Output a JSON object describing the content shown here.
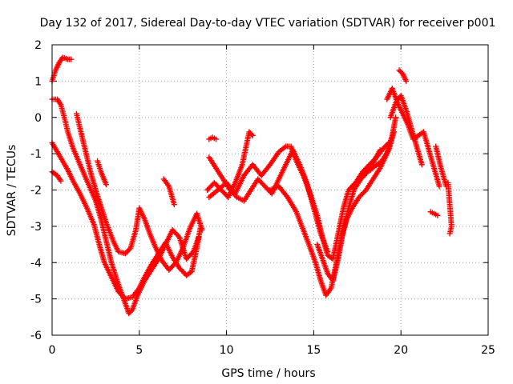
{
  "chart_data": {
    "type": "scatter",
    "title": "Day 132 of 2017, Sidereal Day-to-day VTEC variation (SDTVAR) for receiver p001",
    "xlabel": "GPS time / hours",
    "ylabel": "SDTVAR / TECUs",
    "xlim": [
      0,
      25
    ],
    "ylim": [
      -6,
      2
    ],
    "xticks": [
      0,
      5,
      10,
      15,
      20,
      25
    ],
    "xtick_labels": [
      "0",
      "5",
      "10",
      "15",
      "20",
      "25"
    ],
    "yticks": [
      2,
      1,
      0,
      -1,
      -2,
      -3,
      -4,
      -5,
      -6
    ],
    "ytick_labels": [
      "2",
      "1",
      "0",
      "-1",
      "-2",
      "-3",
      "-4",
      "-5",
      "-6"
    ],
    "grid": true,
    "marker": "+",
    "color": "#ff0000",
    "series": [
      {
        "name": "track-1",
        "points": [
          [
            0.0,
            1.0
          ],
          [
            0.2,
            1.3
          ],
          [
            0.4,
            1.5
          ],
          [
            0.6,
            1.65
          ],
          [
            0.9,
            1.6
          ],
          [
            1.1,
            1.6
          ]
        ]
      },
      {
        "name": "track-2",
        "points": [
          [
            0.0,
            0.5
          ],
          [
            0.3,
            0.5
          ],
          [
            0.5,
            0.35
          ],
          [
            0.7,
            0.0
          ],
          [
            0.9,
            -0.4
          ],
          [
            1.2,
            -0.85
          ],
          [
            1.6,
            -1.3
          ],
          [
            2.0,
            -1.75
          ],
          [
            2.5,
            -2.3
          ],
          [
            2.8,
            -2.8
          ],
          [
            3.1,
            -3.4
          ],
          [
            3.4,
            -4.0
          ],
          [
            3.8,
            -4.6
          ],
          [
            4.1,
            -5.0
          ],
          [
            4.4,
            -5.4
          ],
          [
            4.6,
            -5.3
          ],
          [
            4.9,
            -4.9
          ],
          [
            5.3,
            -4.5
          ],
          [
            5.7,
            -4.2
          ],
          [
            6.1,
            -3.9
          ],
          [
            6.5,
            -3.5
          ],
          [
            6.9,
            -3.1
          ],
          [
            7.3,
            -3.3
          ],
          [
            7.7,
            -3.9
          ],
          [
            8.1,
            -3.7
          ],
          [
            8.4,
            -3.3
          ]
        ]
      },
      {
        "name": "track-3",
        "points": [
          [
            0.0,
            -0.7
          ],
          [
            0.3,
            -0.95
          ],
          [
            0.6,
            -1.2
          ],
          [
            0.9,
            -1.45
          ],
          [
            1.2,
            -1.75
          ],
          [
            1.6,
            -2.1
          ],
          [
            2.0,
            -2.5
          ],
          [
            2.4,
            -2.95
          ],
          [
            2.7,
            -3.5
          ],
          [
            3.0,
            -4.0
          ],
          [
            3.4,
            -4.4
          ],
          [
            3.8,
            -4.8
          ],
          [
            4.2,
            -5.0
          ],
          [
            4.6,
            -4.95
          ],
          [
            5.0,
            -4.7
          ],
          [
            5.3,
            -4.4
          ],
          [
            5.7,
            -4.05
          ],
          [
            6.1,
            -3.75
          ],
          [
            6.5,
            -3.45
          ],
          [
            6.9,
            -3.85
          ],
          [
            7.3,
            -4.15
          ],
          [
            7.7,
            -4.35
          ],
          [
            8.0,
            -4.25
          ],
          [
            8.3,
            -3.6
          ],
          [
            8.5,
            -3.05
          ]
        ]
      },
      {
        "name": "track-4",
        "points": [
          [
            1.4,
            0.1
          ],
          [
            1.6,
            -0.3
          ],
          [
            1.9,
            -0.9
          ],
          [
            2.2,
            -1.5
          ],
          [
            2.5,
            -2.0
          ],
          [
            2.8,
            -2.45
          ],
          [
            3.1,
            -2.9
          ],
          [
            3.5,
            -3.4
          ],
          [
            3.8,
            -3.7
          ],
          [
            4.2,
            -3.75
          ],
          [
            4.5,
            -3.6
          ],
          [
            4.8,
            -3.1
          ],
          [
            5.0,
            -2.5
          ],
          [
            5.3,
            -2.8
          ],
          [
            5.6,
            -3.2
          ],
          [
            5.9,
            -3.55
          ],
          [
            6.3,
            -3.95
          ],
          [
            6.7,
            -4.2
          ],
          [
            7.1,
            -4.0
          ],
          [
            7.5,
            -3.6
          ],
          [
            7.9,
            -3.05
          ],
          [
            8.3,
            -2.65
          ],
          [
            8.6,
            -3.1
          ]
        ]
      },
      {
        "name": "track-5",
        "points": [
          [
            0.0,
            -1.5
          ],
          [
            0.3,
            -1.6
          ],
          [
            0.5,
            -1.75
          ]
        ]
      },
      {
        "name": "track-6",
        "points": [
          [
            2.6,
            -1.2
          ],
          [
            2.8,
            -1.5
          ],
          [
            3.1,
            -1.85
          ]
        ]
      },
      {
        "name": "track-7",
        "points": [
          [
            6.4,
            -1.7
          ],
          [
            6.7,
            -1.9
          ],
          [
            7.0,
            -2.4
          ]
        ]
      },
      {
        "name": "track-8",
        "points": [
          [
            9.0,
            -0.6
          ],
          [
            9.2,
            -0.55
          ],
          [
            9.4,
            -0.6
          ]
        ]
      },
      {
        "name": "track-9",
        "points": [
          [
            8.9,
            -2.0
          ],
          [
            9.3,
            -1.8
          ],
          [
            9.7,
            -2.0
          ],
          [
            10.1,
            -2.2
          ],
          [
            10.5,
            -1.8
          ],
          [
            10.9,
            -1.3
          ],
          [
            11.3,
            -0.4
          ],
          [
            11.5,
            -0.5
          ]
        ]
      },
      {
        "name": "track-10",
        "points": [
          [
            9.0,
            -1.1
          ],
          [
            9.4,
            -1.4
          ],
          [
            9.8,
            -1.7
          ],
          [
            10.2,
            -2.0
          ],
          [
            10.6,
            -2.2
          ],
          [
            11.0,
            -2.3
          ],
          [
            11.4,
            -2.0
          ],
          [
            11.8,
            -1.7
          ],
          [
            12.2,
            -1.9
          ],
          [
            12.6,
            -2.1
          ],
          [
            13.0,
            -1.7
          ],
          [
            13.4,
            -1.3
          ],
          [
            13.8,
            -0.9
          ],
          [
            14.2,
            -1.3
          ],
          [
            14.6,
            -1.8
          ],
          [
            15.0,
            -2.5
          ],
          [
            15.4,
            -3.2
          ],
          [
            15.8,
            -3.7
          ]
        ]
      },
      {
        "name": "track-11",
        "points": [
          [
            9.0,
            -2.2
          ],
          [
            9.5,
            -2.0
          ],
          [
            10.0,
            -1.8
          ],
          [
            10.5,
            -2.1
          ],
          [
            11.0,
            -1.6
          ],
          [
            11.5,
            -1.3
          ],
          [
            12.0,
            -1.6
          ],
          [
            12.5,
            -1.3
          ],
          [
            13.0,
            -0.95
          ],
          [
            13.4,
            -0.8
          ],
          [
            13.7,
            -0.8
          ],
          [
            14.0,
            -1.2
          ],
          [
            14.4,
            -1.6
          ],
          [
            14.8,
            -2.1
          ],
          [
            15.2,
            -2.7
          ],
          [
            15.5,
            -3.3
          ],
          [
            15.8,
            -3.8
          ],
          [
            16.1,
            -3.9
          ],
          [
            16.4,
            -3.2
          ],
          [
            16.7,
            -2.5
          ],
          [
            17.0,
            -2.0
          ],
          [
            17.4,
            -1.8
          ],
          [
            17.8,
            -1.5
          ],
          [
            18.2,
            -1.3
          ],
          [
            18.6,
            -1.1
          ],
          [
            19.0,
            -0.85
          ],
          [
            19.3,
            -0.7
          ]
        ]
      },
      {
        "name": "track-12",
        "points": [
          [
            12.5,
            -2.0
          ],
          [
            13.0,
            -1.9
          ],
          [
            13.5,
            -2.2
          ],
          [
            14.0,
            -2.6
          ],
          [
            14.4,
            -3.1
          ],
          [
            14.8,
            -3.6
          ],
          [
            15.1,
            -4.0
          ],
          [
            15.4,
            -4.5
          ],
          [
            15.7,
            -4.9
          ],
          [
            16.0,
            -4.7
          ],
          [
            16.3,
            -4.0
          ],
          [
            16.6,
            -3.3
          ],
          [
            16.9,
            -2.8
          ],
          [
            17.2,
            -2.5
          ],
          [
            17.6,
            -2.2
          ],
          [
            18.0,
            -2.0
          ],
          [
            18.4,
            -1.7
          ],
          [
            18.8,
            -1.4
          ],
          [
            19.2,
            -1.0
          ],
          [
            19.5,
            -0.5
          ],
          [
            19.7,
            0.0
          ]
        ]
      },
      {
        "name": "track-13",
        "points": [
          [
            15.2,
            -3.5
          ],
          [
            15.5,
            -3.9
          ],
          [
            15.8,
            -4.3
          ],
          [
            16.1,
            -4.5
          ],
          [
            16.4,
            -3.9
          ],
          [
            16.7,
            -3.1
          ],
          [
            17.0,
            -2.5
          ],
          [
            17.3,
            -2.0
          ],
          [
            17.7,
            -1.7
          ],
          [
            18.1,
            -1.5
          ],
          [
            18.5,
            -1.35
          ],
          [
            18.9,
            -1.2
          ],
          [
            19.3,
            -0.9
          ],
          [
            19.6,
            -0.4
          ]
        ]
      },
      {
        "name": "track-14",
        "points": [
          [
            17.2,
            -1.9
          ],
          [
            17.6,
            -1.7
          ],
          [
            18.0,
            -1.5
          ],
          [
            18.4,
            -1.25
          ],
          [
            18.8,
            -0.9
          ]
        ]
      },
      {
        "name": "track-15",
        "points": [
          [
            19.2,
            0.5
          ],
          [
            19.5,
            0.8
          ],
          [
            19.8,
            0.4
          ],
          [
            20.1,
            0.1
          ],
          [
            20.4,
            -0.2
          ],
          [
            20.7,
            -0.6
          ],
          [
            21.0,
            -0.5
          ],
          [
            21.3,
            -0.4
          ],
          [
            21.6,
            -0.9
          ],
          [
            21.9,
            -1.4
          ],
          [
            22.2,
            -1.9
          ]
        ]
      },
      {
        "name": "track-16",
        "points": [
          [
            19.9,
            1.3
          ],
          [
            20.1,
            1.2
          ],
          [
            20.3,
            1.0
          ]
        ]
      },
      {
        "name": "track-17",
        "points": [
          [
            19.4,
            0.0
          ],
          [
            19.7,
            0.4
          ],
          [
            20.0,
            0.6
          ],
          [
            20.3,
            0.2
          ],
          [
            20.6,
            -0.3
          ],
          [
            20.9,
            -0.8
          ],
          [
            21.2,
            -1.3
          ]
        ]
      },
      {
        "name": "track-18",
        "points": [
          [
            21.7,
            -2.6
          ],
          [
            21.9,
            -2.65
          ],
          [
            22.1,
            -2.7
          ]
        ]
      },
      {
        "name": "track-19",
        "points": [
          [
            22.0,
            -0.8
          ],
          [
            22.3,
            -1.4
          ],
          [
            22.6,
            -1.9
          ]
        ]
      },
      {
        "name": "track-20",
        "points": [
          [
            22.7,
            -1.8
          ],
          [
            22.8,
            -2.4
          ],
          [
            22.9,
            -3.0
          ],
          [
            22.8,
            -3.2
          ]
        ]
      }
    ]
  }
}
